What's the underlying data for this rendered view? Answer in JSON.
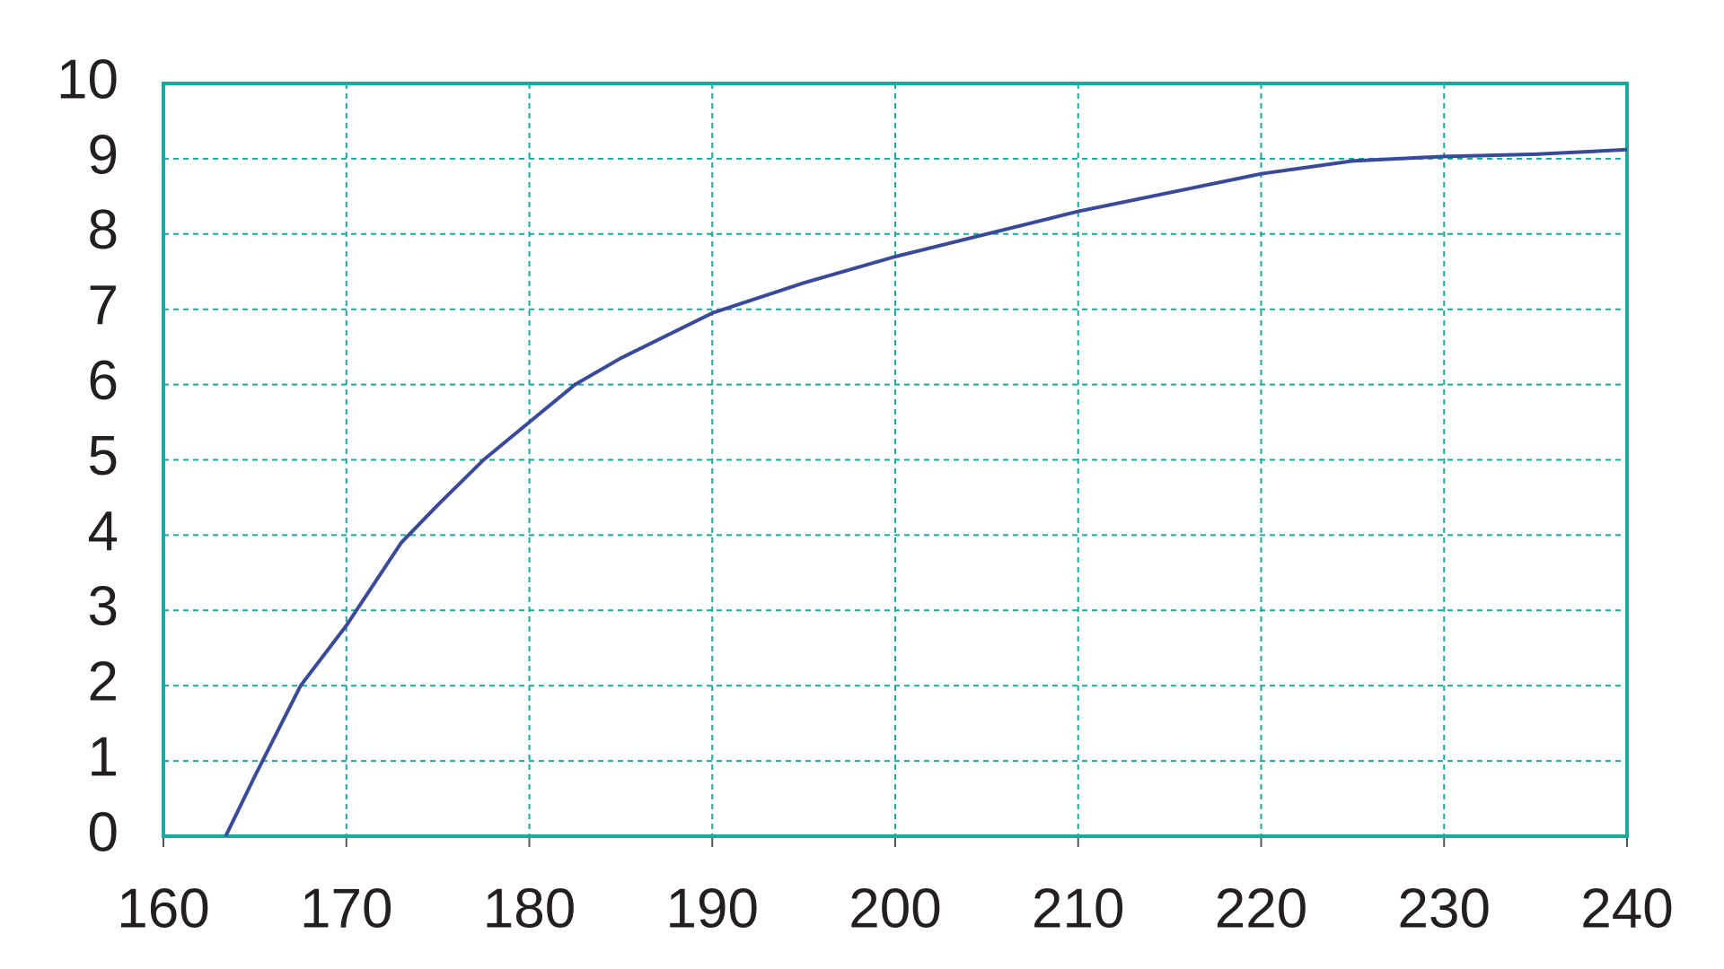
{
  "chart_data": {
    "type": "line",
    "x": [
      163.4,
      165,
      167.5,
      170,
      173,
      175,
      177.5,
      180,
      182.5,
      185,
      190,
      195,
      200,
      205,
      210,
      215,
      220,
      225,
      230,
      235,
      240
    ],
    "values": [
      0,
      0.8,
      2,
      2.8,
      3.9,
      4.4,
      5,
      5.5,
      6,
      6.35,
      6.95,
      7.35,
      7.7,
      8.0,
      8.3,
      8.55,
      8.8,
      8.97,
      9.03,
      9.06,
      9.12
    ],
    "color": "#3a4a9a",
    "frame_color": "#1aa8a0",
    "xlim": [
      160,
      240
    ],
    "xticks": [
      160,
      170,
      180,
      190,
      200,
      210,
      220,
      230,
      240
    ],
    "ylim": [
      0,
      10
    ],
    "yticks": [
      0,
      1,
      2,
      3,
      4,
      5,
      6,
      7,
      8,
      9,
      10
    ],
    "grid": true
  }
}
